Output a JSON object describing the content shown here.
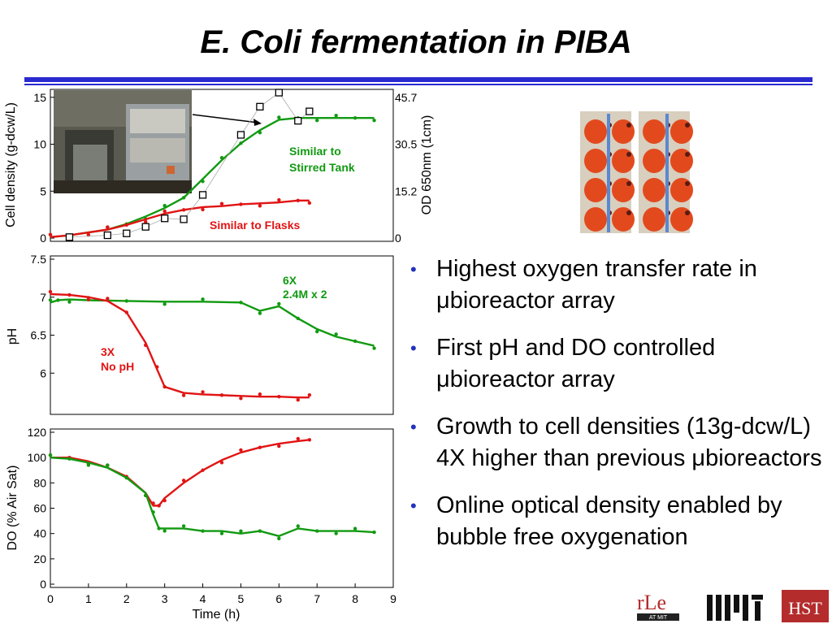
{
  "title": "E. Coli fermentation in PIBA",
  "bullets": [
    "Highest oxygen transfer rate in μbioreactor array",
    "First pH and DO controlled μbioreactor array",
    "Growth to cell densities (13g-dcw/L) 4X higher than previous μbioreactors",
    "Online optical density enabled by bubble free oxygenation"
  ],
  "logos": {
    "rle": "rLe",
    "rle_sub": "AT MIT",
    "hst": "HST"
  },
  "colors": {
    "red": "#e11414",
    "green": "#119a11",
    "blue": "#2a2ad0"
  },
  "chart_data": [
    {
      "type": "line",
      "ylabel": "Cell density (g-dcw/L)",
      "y2label": "OD 650nm (1cm)",
      "yticks": [
        "0",
        "5",
        "10",
        "15"
      ],
      "y2ticks": [
        "0",
        "15.2",
        "30.5",
        "45.7"
      ],
      "xlim": [
        0,
        9
      ],
      "ylim": [
        0,
        15.5
      ],
      "annotations": [
        "Similar to Stirred Tank",
        "Similar to Flasks"
      ],
      "series": [
        {
          "color": "green",
          "x": [
            0,
            0.5,
            1,
            1.5,
            2,
            2.5,
            3,
            3.5,
            4,
            4.5,
            5,
            5.5,
            6,
            6.5,
            7,
            7.5,
            8,
            8.5
          ],
          "y": [
            0.1,
            0.3,
            0.6,
            0.9,
            1.5,
            2.3,
            3.2,
            4.3,
            6.3,
            8.3,
            10.1,
            11.5,
            12.6,
            12.8,
            12.8,
            12.8,
            12.8,
            12.8
          ]
        },
        {
          "color": "red",
          "x": [
            0,
            0.5,
            1,
            1.5,
            2,
            2.5,
            3,
            3.5,
            4,
            4.5,
            5,
            5.5,
            6,
            6.5,
            6.8
          ],
          "y": [
            0.1,
            0.3,
            0.6,
            0.9,
            1.4,
            2.0,
            2.6,
            3.0,
            3.3,
            3.4,
            3.6,
            3.7,
            3.8,
            4.0,
            4.0
          ]
        },
        {
          "marker": "square",
          "x": [
            0.5,
            1.5,
            2,
            2.5,
            3,
            3.5,
            4,
            5,
            5.5,
            6,
            6.5,
            6.8
          ],
          "y": [
            0.1,
            0.3,
            0.5,
            1.2,
            2.1,
            2.0,
            4.6,
            11.0,
            14.0,
            15.5,
            12.5,
            13.5
          ]
        }
      ]
    },
    {
      "type": "line",
      "ylabel": "pH",
      "yticks": [
        "6",
        "6.5",
        "7",
        "7.5"
      ],
      "ylim": [
        5.5,
        7.5
      ],
      "xlim": [
        0,
        9
      ],
      "annotations": [
        "6X",
        "2.4M x 2",
        "3X",
        "No pH"
      ],
      "series": [
        {
          "color": "green",
          "x": [
            0,
            0.2,
            0.5,
            1,
            2,
            3,
            4,
            5,
            5.5,
            6,
            6.5,
            7,
            7.5,
            8,
            8.5
          ],
          "y": [
            6.93,
            6.96,
            6.97,
            6.96,
            6.95,
            6.94,
            6.94,
            6.93,
            6.82,
            6.88,
            6.72,
            6.58,
            6.48,
            6.42,
            6.36
          ]
        },
        {
          "color": "red",
          "x": [
            0,
            0.5,
            1,
            1.5,
            2,
            2.5,
            2.8,
            3,
            3.5,
            4,
            4.5,
            5,
            5.5,
            6,
            6.5,
            6.8
          ],
          "y": [
            7.04,
            7.03,
            7.0,
            6.95,
            6.8,
            6.4,
            6.05,
            5.82,
            5.74,
            5.72,
            5.71,
            5.7,
            5.69,
            5.69,
            5.68,
            5.68
          ]
        }
      ]
    },
    {
      "type": "line",
      "ylabel": "DO  (% Air Sat)",
      "xlabel": "Time (h)",
      "yticks": [
        "0",
        "20",
        "40",
        "60",
        "80",
        "100",
        "120"
      ],
      "xticks": [
        "0",
        "1",
        "2",
        "3",
        "4",
        "5",
        "6",
        "7",
        "8",
        "9"
      ],
      "ylim": [
        0,
        120
      ],
      "xlim": [
        0,
        9
      ],
      "series": [
        {
          "color": "red",
          "x": [
            0,
            0.5,
            1,
            1.5,
            2,
            2.5,
            2.7,
            2.85,
            3,
            3.5,
            4,
            4.5,
            5,
            5.5,
            6,
            6.5,
            6.8
          ],
          "y": [
            100,
            100,
            97,
            92,
            85,
            72,
            62,
            62,
            68,
            80,
            90,
            98,
            104,
            108,
            111,
            113,
            114
          ]
        },
        {
          "color": "green",
          "x": [
            0,
            0.5,
            1,
            1.5,
            2,
            2.5,
            2.7,
            2.85,
            3,
            3.5,
            4,
            4.5,
            5,
            5.5,
            6,
            6.5,
            7,
            7.5,
            8,
            8.5
          ],
          "y": [
            100,
            99,
            96,
            92,
            84,
            72,
            55,
            44,
            44,
            44,
            42,
            42,
            40,
            42,
            38,
            44,
            42,
            42,
            42,
            41
          ]
        }
      ]
    }
  ]
}
